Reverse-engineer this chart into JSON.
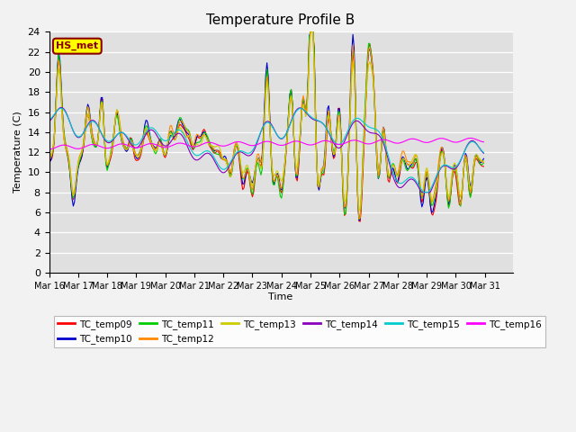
{
  "title": "Temperature Profile B",
  "xlabel": "Time",
  "ylabel": "Temperature (C)",
  "ylim": [
    0,
    24
  ],
  "yticks": [
    0,
    2,
    4,
    6,
    8,
    10,
    12,
    14,
    16,
    18,
    20,
    22,
    24
  ],
  "annotation_text": "HS_met",
  "annotation_color": "#8B0000",
  "annotation_bg": "#FFFF00",
  "plot_bg_color": "#E0E0E0",
  "fig_bg_color": "#F2F2F2",
  "series_colors": {
    "TC_temp09": "#FF0000",
    "TC_temp10": "#0000CC",
    "TC_temp11": "#00CC00",
    "TC_temp12": "#FF8800",
    "TC_temp13": "#CCCC00",
    "TC_temp14": "#8800BB",
    "TC_temp15": "#00CCCC",
    "TC_temp16": "#FF00FF"
  },
  "n_points": 360,
  "freq_hours": 1
}
